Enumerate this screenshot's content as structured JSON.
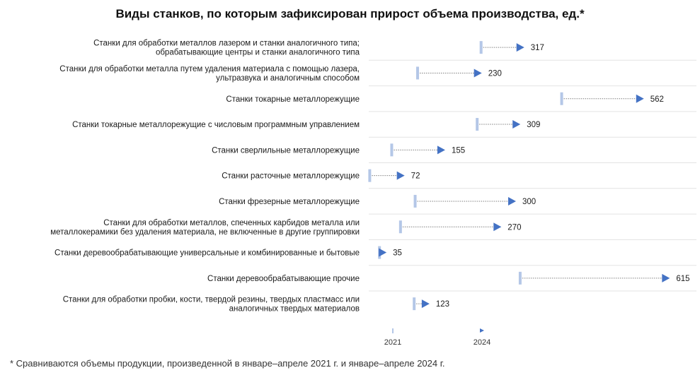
{
  "title": "Виды станков, по которым зафиксирован прирост объема производства, ед.*",
  "footnote": "* Сравниваются объемы продукции, произведенной в январе–апреле 2021 г. и январе–апреле 2024 г.",
  "colors": {
    "start_marker": "#b4c7e7",
    "arrow": "#4472c4",
    "connector": "#7f7f7f",
    "row_divider": "#e3e3e3"
  },
  "chart_data": {
    "type": "dumbbell",
    "legend": [
      "2021",
      "2024"
    ],
    "rows": [
      {
        "label": [
          "Станки для обработки металлов лазером и станки аналогичного типа;",
          "обрабатывающие центры и станки аналогичного типа"
        ],
        "start": 230,
        "end": 317,
        "value_label": "317"
      },
      {
        "label": [
          "Станки для обработки металла путем удаления материала с помощью лазера,",
          "ультразвука и аналогичным способом"
        ],
        "start": 100,
        "end": 230,
        "value_label": "230"
      },
      {
        "label": [
          "Станки токарные металлорежущие"
        ],
        "start": 395,
        "end": 562,
        "value_label": "562"
      },
      {
        "label": [
          "Станки токарные металлорежущие с числовым программным управлением"
        ],
        "start": 222,
        "end": 309,
        "value_label": "309"
      },
      {
        "label": [
          "Станки сверлильные металлорежущие"
        ],
        "start": 47,
        "end": 155,
        "value_label": "155"
      },
      {
        "label": [
          "Станки расточные металлорежущие"
        ],
        "start": 2,
        "end": 72,
        "value_label": "72"
      },
      {
        "label": [
          "Станки фрезерные металлорежущие"
        ],
        "start": 95,
        "end": 300,
        "value_label": "300"
      },
      {
        "label": [
          "Станки для обработки металлов, спеченных карбидов металла или",
          "металлокерамики без удаления материала, не включенные в другие группировки"
        ],
        "start": 65,
        "end": 270,
        "value_label": "270"
      },
      {
        "label": [
          "Станки деревообрабатывающие универсальные и комбинированные и бытовые"
        ],
        "start": 22,
        "end": 35,
        "value_label": "35"
      },
      {
        "label": [
          "Станки деревообрабатывающие прочие"
        ],
        "start": 310,
        "end": 615,
        "value_label": "615"
      },
      {
        "label": [
          "Станки для обработки пробки, кости, твердой резины, твердых пластмасс или",
          "аналогичных твердых материалов"
        ],
        "start": 93,
        "end": 123,
        "value_label": "123"
      }
    ]
  }
}
